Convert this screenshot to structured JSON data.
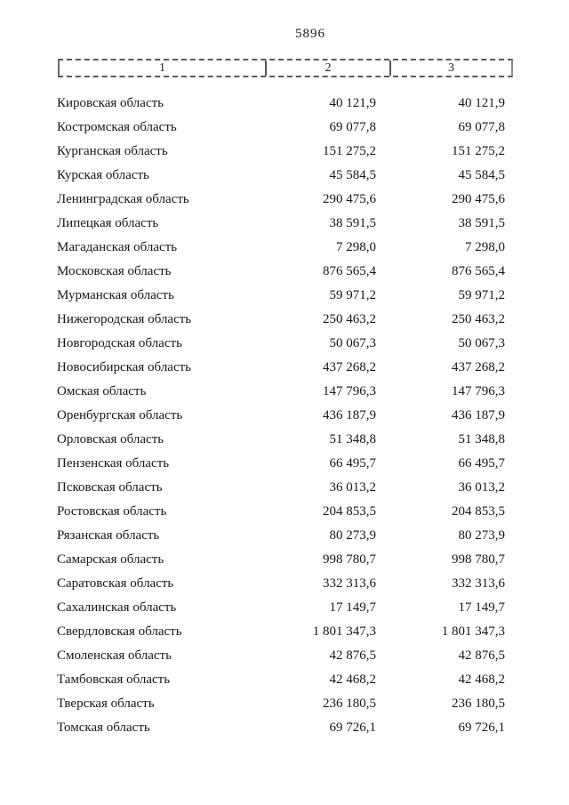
{
  "page": {
    "number": "5896"
  },
  "table": {
    "header": {
      "col1": "1",
      "col2": "2",
      "col3": "3"
    },
    "rows": [
      {
        "name": "Кировская область",
        "col2": "40 121,9",
        "col3": "40 121,9"
      },
      {
        "name": "Костромская область",
        "col2": "69 077,8",
        "col3": "69 077,8"
      },
      {
        "name": "Курганская область",
        "col2": "151 275,2",
        "col3": "151 275,2"
      },
      {
        "name": "Курская область",
        "col2": "45 584,5",
        "col3": "45 584,5"
      },
      {
        "name": "Ленинградская область",
        "col2": "290 475,6",
        "col3": "290 475,6"
      },
      {
        "name": "Липецкая область",
        "col2": "38 591,5",
        "col3": "38 591,5"
      },
      {
        "name": "Магаданская область",
        "col2": "7 298,0",
        "col3": "7 298,0"
      },
      {
        "name": "Московская область",
        "col2": "876 565,4",
        "col3": "876 565,4"
      },
      {
        "name": "Мурманская область",
        "col2": "59 971,2",
        "col3": "59 971,2"
      },
      {
        "name": "Нижегородская область",
        "col2": "250 463,2",
        "col3": "250 463,2"
      },
      {
        "name": "Новгородская область",
        "col2": "50 067,3",
        "col3": "50 067,3"
      },
      {
        "name": "Новосибирская область",
        "col2": "437 268,2",
        "col3": "437 268,2"
      },
      {
        "name": "Омская область",
        "col2": "147 796,3",
        "col3": "147 796,3"
      },
      {
        "name": "Оренбургская область",
        "col2": "436 187,9",
        "col3": "436 187,9"
      },
      {
        "name": "Орловская область",
        "col2": "51 348,8",
        "col3": "51 348,8"
      },
      {
        "name": "Пензенская область",
        "col2": "66 495,7",
        "col3": "66 495,7"
      },
      {
        "name": "Псковская область",
        "col2": "36 013,2",
        "col3": "36 013,2"
      },
      {
        "name": "Ростовская область",
        "col2": "204 853,5",
        "col3": "204 853,5"
      },
      {
        "name": "Рязанская область",
        "col2": "80 273,9",
        "col3": "80 273,9"
      },
      {
        "name": "Самарская область",
        "col2": "998 780,7",
        "col3": "998 780,7"
      },
      {
        "name": "Саратовская область",
        "col2": "332 313,6",
        "col3": "332 313,6"
      },
      {
        "name": "Сахалинская область",
        "col2": "17 149,7",
        "col3": "17 149,7"
      },
      {
        "name": "Свердловская область",
        "col2": "1 801 347,3",
        "col3": "1 801 347,3"
      },
      {
        "name": "Смоленская область",
        "col2": "42 876,5",
        "col3": "42 876,5"
      },
      {
        "name": "Тамбовская область",
        "col2": "42 468,2",
        "col3": "42 468,2"
      },
      {
        "name": "Тверская область",
        "col2": "236 180,5",
        "col3": "236 180,5"
      },
      {
        "name": "Томская область",
        "col2": "69 726,1",
        "col3": "69 726,1"
      }
    ]
  }
}
